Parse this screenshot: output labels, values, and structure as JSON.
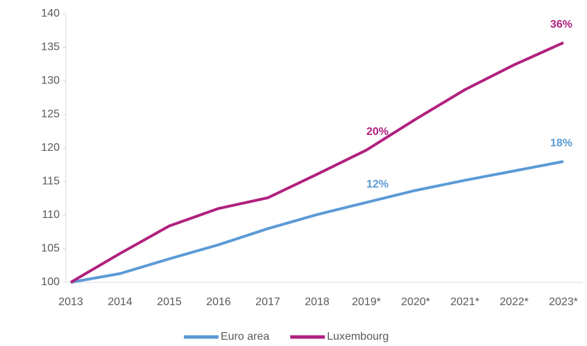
{
  "chart_data": {
    "type": "line",
    "categories": [
      "2013",
      "2014",
      "2015",
      "2016",
      "2017",
      "2018",
      "2019*",
      "2020*",
      "2021*",
      "2022*",
      "2023*"
    ],
    "series": [
      {
        "name": "Euro area",
        "color": "#5b9bd5",
        "values": [
          100,
          101.3,
          103.5,
          105.6,
          108.0,
          110.1,
          111.9,
          113.7,
          115.2,
          116.6,
          118.0
        ]
      },
      {
        "name": "Luxembourg",
        "color": "#b0207e",
        "values": [
          100,
          104.3,
          108.4,
          111.0,
          112.6,
          116.1,
          119.7,
          124.3,
          128.7,
          132.4,
          135.7
        ]
      }
    ],
    "annotations": [
      {
        "text": "12%",
        "series": "Euro area",
        "x": "2019*"
      },
      {
        "text": "18%",
        "series": "Euro area",
        "x": "2023*"
      },
      {
        "text": "20%",
        "series": "Luxembourg",
        "x": "2019*"
      },
      {
        "text": "36%",
        "series": "Luxembourg",
        "x": "2023*"
      }
    ],
    "ylim": [
      100,
      140
    ],
    "yticks": [
      100,
      105,
      110,
      115,
      120,
      125,
      130,
      135,
      140
    ],
    "grid": false,
    "legend": "bottom"
  }
}
